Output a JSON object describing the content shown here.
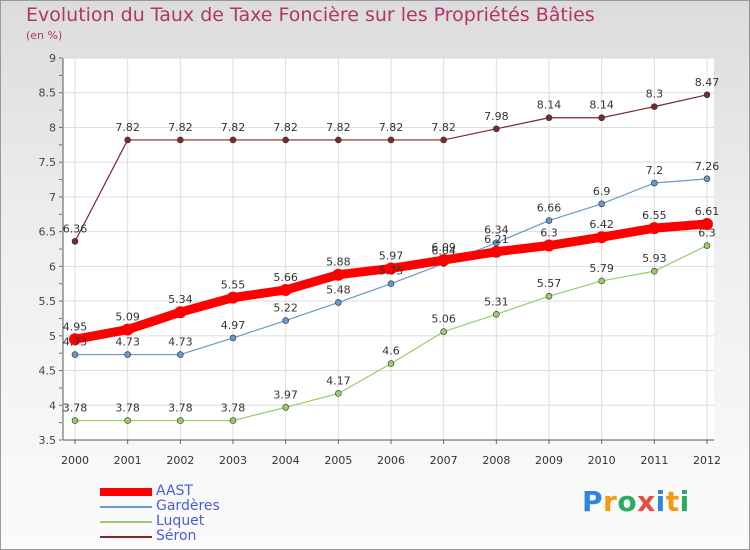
{
  "title": "Evolution du Taux de Taxe Foncière sur les Propriétés Bâties",
  "subtitle": "(en %)",
  "logo": {
    "text": "Proxiti",
    "letters": [
      {
        "ch": "P",
        "color": "#2e86de"
      },
      {
        "ch": "r",
        "color": "#f39c12"
      },
      {
        "ch": "o",
        "color": "#27ae60"
      },
      {
        "ch": "x",
        "color": "#e74c3c"
      },
      {
        "ch": "i",
        "color": "#2e86de"
      },
      {
        "ch": "t",
        "color": "#f39c12"
      },
      {
        "ch": "i",
        "color": "#27ae60"
      }
    ]
  },
  "chart_data": {
    "type": "line",
    "title": "Evolution du Taux de Taxe Foncière sur les Propriétés Bâties",
    "ylabel": "(en %)",
    "xlabel": "",
    "x": [
      "2000",
      "2001",
      "2002",
      "2003",
      "2004",
      "2005",
      "2006",
      "2007",
      "2008",
      "2009",
      "2010",
      "2011",
      "2012"
    ],
    "ylim": [
      3.5,
      9
    ],
    "yticks": [
      "3.5",
      "4",
      "4.5",
      "5",
      "5.5",
      "6",
      "6.5",
      "7",
      "7.5",
      "8",
      "8.5",
      "9"
    ],
    "grid": true,
    "legend_position": "bottom-left",
    "series": [
      {
        "name": "AAST",
        "color": "#ff0000",
        "values": [
          4.95,
          5.09,
          5.34,
          5.55,
          5.66,
          5.88,
          5.97,
          6.09,
          6.21,
          6.3,
          6.42,
          6.55,
          6.61
        ],
        "labels": [
          "4.95",
          "5.09",
          "5.34",
          "5.55",
          "5.66",
          "5.88",
          "5.97",
          "6.09",
          "6.21",
          "6.3",
          "6.42",
          "6.55",
          "6.61"
        ]
      },
      {
        "name": "Gardères",
        "color": "#6699cc",
        "values": [
          4.73,
          4.73,
          4.73,
          4.97,
          5.22,
          5.48,
          5.75,
          6.04,
          6.34,
          6.66,
          6.9,
          7.2,
          7.26
        ],
        "labels": [
          "4.73",
          "4.73",
          "4.73",
          "4.97",
          "5.22",
          "5.48",
          "5.75",
          "6.04",
          "6.34",
          "6.66",
          "6.9",
          "7.2",
          "7.26"
        ]
      },
      {
        "name": "Luquet",
        "color": "#99cc66",
        "values": [
          3.78,
          3.78,
          3.78,
          3.78,
          3.97,
          4.17,
          4.6,
          5.06,
          5.31,
          5.57,
          5.79,
          5.93,
          6.3
        ],
        "labels": [
          "3.78",
          "3.78",
          "3.78",
          "3.78",
          "3.97",
          "4.17",
          "4.6",
          "5.06",
          "5.31",
          "5.57",
          "5.79",
          "5.93",
          "6.3"
        ]
      },
      {
        "name": "Séron",
        "color": "#7a2a2a",
        "values": [
          6.36,
          7.82,
          7.82,
          7.82,
          7.82,
          7.82,
          7.82,
          7.82,
          7.98,
          8.14,
          8.14,
          8.3,
          8.47
        ],
        "labels": [
          "6.36",
          "7.82",
          "7.82",
          "7.82",
          "7.82",
          "7.82",
          "7.82",
          "7.82",
          "7.98",
          "8.14",
          "8.14",
          "8.3",
          "8.47"
        ]
      }
    ]
  }
}
